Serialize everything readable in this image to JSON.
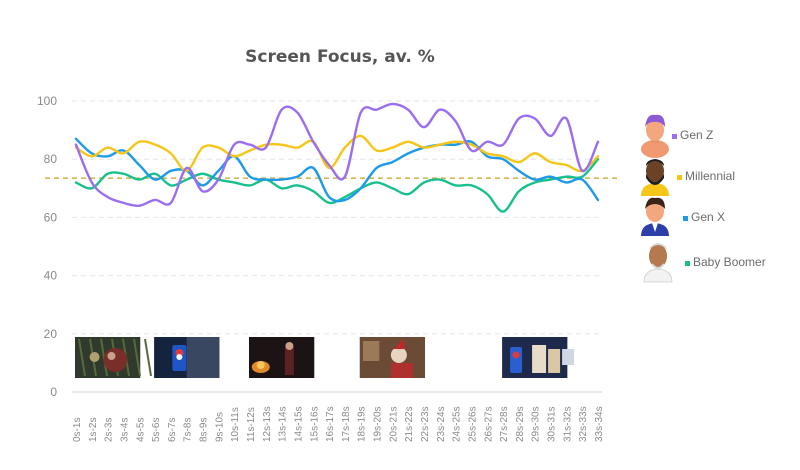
{
  "chart_data": {
    "type": "line",
    "title": "Screen Focus, av. %",
    "xlabel": "",
    "ylabel": "",
    "ylim": [
      0,
      100
    ],
    "yticks": [
      0,
      20,
      40,
      60,
      80,
      100
    ],
    "grid": true,
    "legend_position": "right",
    "categories": [
      "0s-1s",
      "1s-2s",
      "2s-3s",
      "3s-4s",
      "4s-5s",
      "5s-6s",
      "6s-7s",
      "7s-8s",
      "8s-9s",
      "9s-10s",
      "10s-11s",
      "11s-12s",
      "12s-13s",
      "13s-14s",
      "14s-15s",
      "15s-16s",
      "16s-17s",
      "17s-18s",
      "18s-19s",
      "19s-20s",
      "20s-21s",
      "21s-22s",
      "22s-23s",
      "23s-24s",
      "24s-25s",
      "25s-26s",
      "26s-27s",
      "27s-28s",
      "28s-29s",
      "29s-30s",
      "30s-31s",
      "31s-32s",
      "32s-33s",
      "33s-34s"
    ],
    "reference_line": {
      "value": 73.5,
      "color": "#c9a227"
    },
    "series": [
      {
        "name": "Gen Z",
        "color": "#9b6ef0",
        "values": [
          85,
          72,
          67,
          65,
          64,
          66,
          65,
          77,
          69,
          73,
          85,
          85,
          84,
          97,
          96,
          86,
          78,
          74,
          96,
          97,
          99,
          97,
          91,
          97,
          93,
          83,
          86,
          85,
          94,
          94,
          88,
          94,
          76,
          86
        ]
      },
      {
        "name": "Millennial",
        "color": "#f5c518",
        "values": [
          84,
          81,
          84,
          82,
          86,
          85,
          82,
          76,
          84,
          84,
          81,
          83,
          85,
          85,
          84,
          86,
          77,
          84,
          88,
          83,
          84,
          86,
          84,
          85,
          86,
          85,
          82,
          81,
          79,
          82,
          79,
          78,
          76,
          81
        ]
      },
      {
        "name": "Gen X",
        "color": "#1e9ae8",
        "values": [
          87,
          82,
          81,
          83,
          78,
          73,
          76,
          76,
          71,
          76,
          81,
          74,
          73,
          73,
          74,
          77,
          67,
          66,
          70,
          77,
          79,
          82,
          84,
          85,
          85,
          86,
          81,
          80,
          76,
          73,
          74,
          72,
          73,
          66
        ]
      },
      {
        "name": "Baby Boomer",
        "color": "#17c08d",
        "values": [
          72,
          70,
          75,
          75,
          73,
          75,
          71,
          73,
          75,
          73,
          72,
          71,
          73,
          70,
          71,
          69,
          65,
          67,
          70,
          72,
          70,
          68,
          72,
          73,
          71,
          71,
          68,
          62,
          69,
          72,
          73,
          74,
          74,
          80
        ]
      }
    ]
  },
  "thumbnails": [
    {
      "name": "ornament-scene",
      "from": 0,
      "to": 4
    },
    {
      "name": "pepsi-can-scene",
      "from": 5,
      "to": 9
    },
    {
      "name": "fireplace-scene",
      "from": 11,
      "to": 15
    },
    {
      "name": "santa-scene",
      "from": 18,
      "to": 22
    },
    {
      "name": "pepsi-milk-scene",
      "from": 27,
      "to": 31
    }
  ]
}
